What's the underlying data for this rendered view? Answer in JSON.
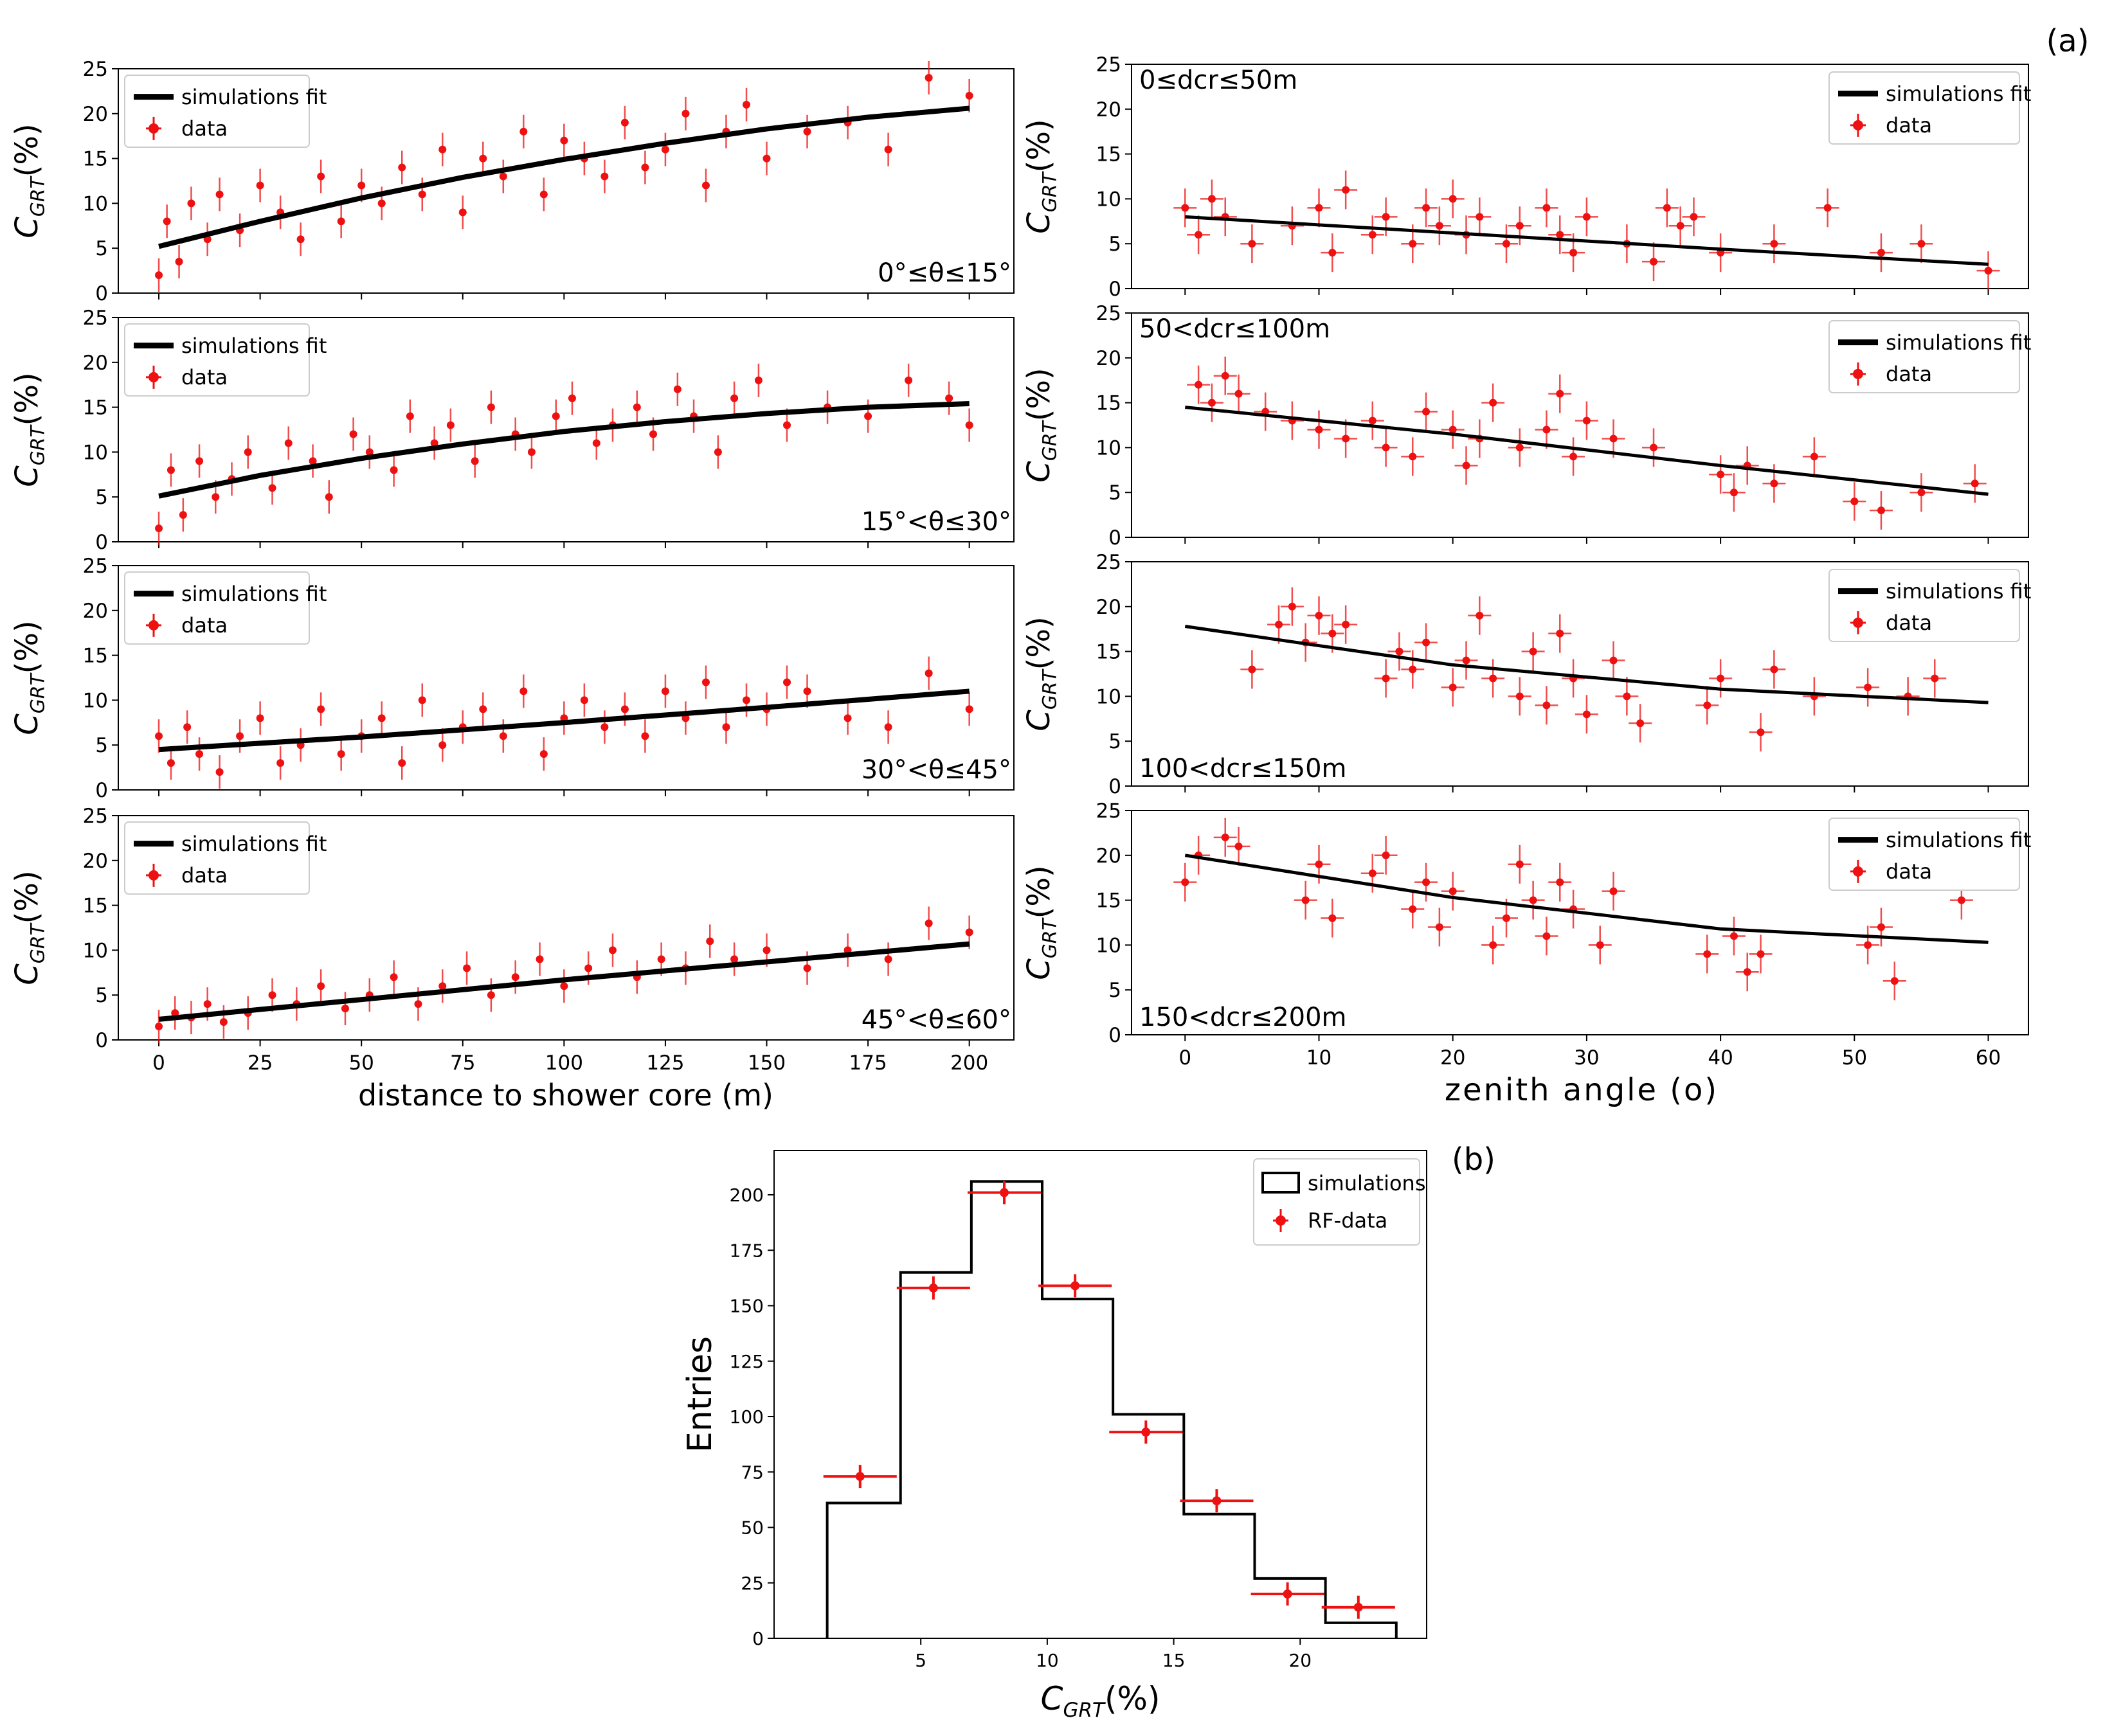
{
  "panel_labels": {
    "a": "(a)",
    "b": "(b)"
  },
  "legend": {
    "fit": "simulations fit",
    "data": "data",
    "sim": "simulations",
    "rfdata": "RF-data"
  },
  "ylabel_main": "C",
  "ylabel_sub": "GRT",
  "ylabel_suffix": "(%)",
  "left_panels": [
    {
      "label": "0°≤θ≤15°"
    },
    {
      "label": "15°<θ≤30°"
    },
    {
      "label": "30°<θ≤45°"
    },
    {
      "label": "45°<θ≤60°"
    }
  ],
  "right_panels": [
    {
      "label": "0≤dcr≤50m"
    },
    {
      "label": "50<dcr≤100m"
    },
    {
      "label": "100<dcr≤150m"
    },
    {
      "label": "150<dcr≤200m"
    }
  ],
  "chart_data": [
    {
      "type": "scatter",
      "title": "0°≤θ≤15°",
      "xlabel": "distance to shower core (m)",
      "ylabel": "CGRT(%)",
      "xlim": [
        -10,
        211
      ],
      "ylim": [
        0,
        25
      ],
      "xticks": [
        0,
        25,
        50,
        75,
        100,
        125,
        150,
        175,
        200
      ],
      "yticks": [
        0,
        5,
        10,
        15,
        20,
        25
      ],
      "fit": {
        "name": "simulations fit",
        "x": [
          0,
          25,
          50,
          75,
          100,
          125,
          150,
          175,
          200
        ],
        "y": [
          5.2,
          8.0,
          10.6,
          12.9,
          14.9,
          16.7,
          18.3,
          19.6,
          20.6
        ]
      },
      "series": [
        {
          "name": "data",
          "x": [
            0,
            2,
            5,
            8,
            12,
            15,
            20,
            25,
            30,
            35,
            40,
            45,
            50,
            55,
            60,
            65,
            70,
            75,
            80,
            85,
            90,
            95,
            100,
            105,
            110,
            115,
            120,
            125,
            130,
            135,
            140,
            145,
            150,
            160,
            170,
            180,
            190,
            200
          ],
          "y": [
            2,
            8,
            3.5,
            10,
            6,
            11,
            7,
            12,
            9,
            6,
            13,
            8,
            12,
            10,
            14,
            11,
            16,
            9,
            15,
            13,
            18,
            11,
            17,
            15,
            13,
            19,
            14,
            16,
            20,
            12,
            18,
            21,
            15,
            18,
            19,
            16,
            24,
            22
          ]
        }
      ]
    },
    {
      "type": "scatter",
      "title": "15°<θ≤30°",
      "xlabel": "distance to shower core (m)",
      "ylabel": "CGRT(%)",
      "xlim": [
        -10,
        211
      ],
      "ylim": [
        0,
        25
      ],
      "xticks": [
        0,
        25,
        50,
        75,
        100,
        125,
        150,
        175,
        200
      ],
      "yticks": [
        0,
        5,
        10,
        15,
        20,
        25
      ],
      "fit": {
        "name": "simulations fit",
        "x": [
          0,
          25,
          50,
          75,
          100,
          125,
          150,
          175,
          200
        ],
        "y": [
          5.1,
          7.4,
          9.3,
          10.9,
          12.3,
          13.4,
          14.3,
          15.0,
          15.4
        ]
      },
      "series": [
        {
          "name": "data",
          "x": [
            0,
            3,
            6,
            10,
            14,
            18,
            22,
            28,
            32,
            38,
            42,
            48,
            52,
            58,
            62,
            68,
            72,
            78,
            82,
            88,
            92,
            98,
            102,
            108,
            112,
            118,
            122,
            128,
            132,
            138,
            142,
            148,
            155,
            165,
            175,
            185,
            195,
            200
          ],
          "y": [
            1.5,
            8,
            3,
            9,
            5,
            7,
            10,
            6,
            11,
            9,
            5,
            12,
            10,
            8,
            14,
            11,
            13,
            9,
            15,
            12,
            10,
            14,
            16,
            11,
            13,
            15,
            12,
            17,
            14,
            10,
            16,
            18,
            13,
            15,
            14,
            18,
            16,
            13
          ]
        }
      ]
    },
    {
      "type": "scatter",
      "title": "30°<θ≤45°",
      "xlabel": "distance to shower core (m)",
      "ylabel": "CGRT(%)",
      "xlim": [
        -10,
        211
      ],
      "ylim": [
        0,
        25
      ],
      "xticks": [
        0,
        25,
        50,
        75,
        100,
        125,
        150,
        175,
        200
      ],
      "yticks": [
        0,
        5,
        10,
        15,
        20,
        25
      ],
      "fit": {
        "name": "simulations fit",
        "x": [
          0,
          50,
          100,
          150,
          200
        ],
        "y": [
          4.5,
          5.9,
          7.5,
          9.2,
          11.0
        ]
      },
      "series": [
        {
          "name": "data",
          "x": [
            0,
            3,
            7,
            10,
            15,
            20,
            25,
            30,
            35,
            40,
            45,
            50,
            55,
            60,
            65,
            70,
            75,
            80,
            85,
            90,
            95,
            100,
            105,
            110,
            115,
            120,
            125,
            130,
            135,
            140,
            145,
            150,
            155,
            160,
            170,
            180,
            190,
            200
          ],
          "y": [
            6,
            3,
            7,
            4,
            2,
            6,
            8,
            3,
            5,
            9,
            4,
            6,
            8,
            3,
            10,
            5,
            7,
            9,
            6,
            11,
            4,
            8,
            10,
            7,
            9,
            6,
            11,
            8,
            12,
            7,
            10,
            9,
            12,
            11,
            8,
            7,
            13,
            9
          ]
        }
      ]
    },
    {
      "type": "scatter",
      "title": "45°<θ≤60°",
      "xlabel": "distance to shower core (m)",
      "ylabel": "CGRT(%)",
      "xlim": [
        -10,
        211
      ],
      "ylim": [
        0,
        25
      ],
      "xticks": [
        0,
        25,
        50,
        75,
        100,
        125,
        150,
        175,
        200
      ],
      "yticks": [
        0,
        5,
        10,
        15,
        20,
        25
      ],
      "fit": {
        "name": "simulations fit",
        "x": [
          0,
          50,
          100,
          150,
          200
        ],
        "y": [
          2.3,
          4.5,
          6.7,
          8.7,
          10.7
        ]
      },
      "series": [
        {
          "name": "data",
          "x": [
            0,
            4,
            8,
            12,
            16,
            22,
            28,
            34,
            40,
            46,
            52,
            58,
            64,
            70,
            76,
            82,
            88,
            94,
            100,
            106,
            112,
            118,
            124,
            130,
            136,
            142,
            150,
            160,
            170,
            180,
            190,
            200
          ],
          "y": [
            1.5,
            3,
            2.5,
            4,
            2,
            3,
            5,
            4,
            6,
            3.5,
            5,
            7,
            4,
            6,
            8,
            5,
            7,
            9,
            6,
            8,
            10,
            7,
            9,
            8,
            11,
            9,
            10,
            8,
            10,
            9,
            13,
            12
          ]
        }
      ]
    },
    {
      "type": "scatter",
      "title": "0≤dcr≤50m",
      "xlabel": "zenith angle (o)",
      "ylabel": "CGRT(%)",
      "xlim": [
        -4,
        63
      ],
      "ylim": [
        0,
        25
      ],
      "xticks": [
        0,
        10,
        20,
        30,
        40,
        50,
        60
      ],
      "yticks": [
        0,
        5,
        10,
        15,
        20,
        25
      ],
      "fit": {
        "name": "simulations fit",
        "x": [
          0,
          20,
          40,
          60
        ],
        "y": [
          8.0,
          6.2,
          4.4,
          2.7
        ]
      },
      "series": [
        {
          "name": "data",
          "x": [
            0,
            1,
            2,
            3,
            5,
            8,
            10,
            11,
            12,
            14,
            15,
            17,
            18,
            19,
            20,
            21,
            22,
            24,
            25,
            27,
            28,
            29,
            30,
            33,
            35,
            36,
            37,
            38,
            40,
            44,
            48,
            52,
            55,
            60
          ],
          "y": [
            9,
            6,
            10,
            8,
            5,
            7,
            9,
            4,
            11,
            6,
            8,
            5,
            9,
            7,
            10,
            6,
            8,
            5,
            7,
            9,
            6,
            4,
            8,
            5,
            3,
            9,
            7,
            8,
            4,
            5,
            9,
            4,
            5,
            2
          ]
        }
      ]
    },
    {
      "type": "scatter",
      "title": "50<dcr≤100m",
      "xlabel": "zenith angle (o)",
      "ylabel": "CGRT(%)",
      "xlim": [
        -4,
        63
      ],
      "ylim": [
        0,
        25
      ],
      "xticks": [
        0,
        10,
        20,
        30,
        40,
        50,
        60
      ],
      "yticks": [
        0,
        5,
        10,
        15,
        20,
        25
      ],
      "fit": {
        "name": "simulations fit",
        "x": [
          0,
          20,
          40,
          60
        ],
        "y": [
          14.5,
          11.5,
          8.0,
          4.8
        ]
      },
      "series": [
        {
          "name": "data",
          "x": [
            1,
            2,
            3,
            4,
            6,
            8,
            10,
            12,
            14,
            15,
            17,
            18,
            20,
            21,
            22,
            23,
            25,
            27,
            28,
            29,
            30,
            32,
            35,
            40,
            41,
            42,
            44,
            47,
            50,
            52,
            55,
            59
          ],
          "y": [
            17,
            15,
            18,
            16,
            14,
            13,
            12,
            11,
            13,
            10,
            9,
            14,
            12,
            8,
            11,
            15,
            10,
            12,
            16,
            9,
            13,
            11,
            10,
            7,
            5,
            8,
            6,
            9,
            4,
            3,
            5,
            6
          ]
        }
      ]
    },
    {
      "type": "scatter",
      "title": "100<dcr≤150m",
      "xlabel": "zenith angle (o)",
      "ylabel": "CGRT(%)",
      "xlim": [
        -4,
        63
      ],
      "ylim": [
        0,
        25
      ],
      "xticks": [
        0,
        10,
        20,
        30,
        40,
        50,
        60
      ],
      "yticks": [
        0,
        5,
        10,
        15,
        20,
        25
      ],
      "fit": {
        "name": "simulations fit",
        "x": [
          0,
          20,
          40,
          60
        ],
        "y": [
          17.8,
          13.5,
          10.8,
          9.3
        ]
      },
      "series": [
        {
          "name": "data",
          "x": [
            5,
            7,
            8,
            9,
            10,
            11,
            12,
            15,
            16,
            17,
            18,
            20,
            21,
            22,
            23,
            25,
            26,
            27,
            28,
            29,
            30,
            32,
            33,
            34,
            39,
            40,
            43,
            44,
            47,
            51,
            54,
            56
          ],
          "y": [
            13,
            18,
            20,
            16,
            19,
            17,
            18,
            12,
            15,
            13,
            16,
            11,
            14,
            19,
            12,
            10,
            15,
            9,
            17,
            12,
            8,
            14,
            10,
            7,
            9,
            12,
            6,
            13,
            10,
            11,
            10,
            12
          ]
        }
      ]
    },
    {
      "type": "scatter",
      "title": "150<dcr≤200m",
      "xlabel": "zenith angle (o)",
      "ylabel": "CGRT(%)",
      "xlim": [
        -4,
        63
      ],
      "ylim": [
        0,
        25
      ],
      "xticks": [
        0,
        10,
        20,
        30,
        40,
        50,
        60
      ],
      "yticks": [
        0,
        5,
        10,
        15,
        20,
        25
      ],
      "fit": {
        "name": "simulations fit",
        "x": [
          0,
          20,
          40,
          60
        ],
        "y": [
          20.0,
          15.3,
          11.8,
          10.3
        ]
      },
      "series": [
        {
          "name": "data",
          "x": [
            0,
            1,
            3,
            4,
            9,
            10,
            11,
            14,
            15,
            17,
            18,
            19,
            20,
            23,
            24,
            25,
            26,
            27,
            28,
            29,
            31,
            32,
            39,
            41,
            42,
            43,
            51,
            52,
            53,
            58
          ],
          "y": [
            17,
            20,
            22,
            21,
            15,
            19,
            13,
            18,
            20,
            14,
            17,
            12,
            16,
            10,
            13,
            19,
            15,
            11,
            17,
            14,
            10,
            16,
            9,
            11,
            7,
            9,
            10,
            12,
            6,
            15
          ]
        }
      ]
    },
    {
      "type": "bar",
      "title": "",
      "xlabel": "CGRT(%)",
      "ylabel": "Entries",
      "xlim": [
        -0.8,
        25
      ],
      "ylim": [
        0,
        220
      ],
      "xticks": [
        5,
        10,
        15,
        20
      ],
      "yticks": [
        0,
        25,
        50,
        75,
        100,
        125,
        150,
        175,
        200
      ],
      "bin_edges": [
        1.3,
        4.2,
        7.0,
        9.8,
        12.6,
        15.4,
        18.2,
        21.0,
        23.8
      ],
      "series": [
        {
          "name": "simulations",
          "values": [
            61,
            165,
            206,
            153,
            101,
            56,
            27,
            7
          ]
        },
        {
          "name": "RF-data",
          "centers": [
            2.6,
            5.5,
            8.3,
            11.1,
            13.9,
            16.7,
            19.5,
            22.3
          ],
          "values": [
            73,
            158,
            201,
            159,
            93,
            62,
            20,
            14
          ]
        }
      ]
    }
  ]
}
